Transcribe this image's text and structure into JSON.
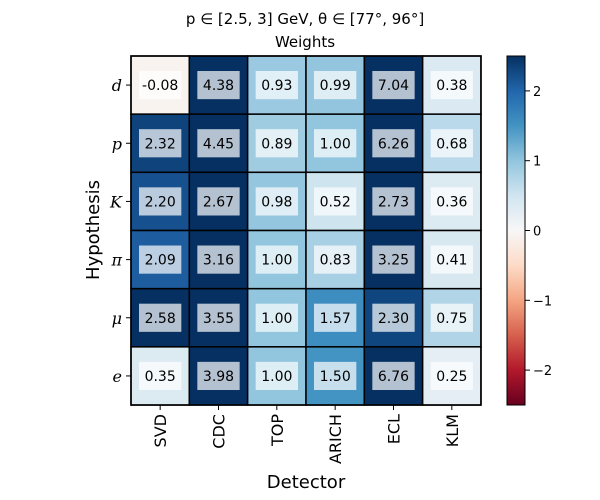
{
  "chart_data": {
    "type": "heatmap",
    "title_line1": "p ∈ [2.5, 3] GeV, θ ∈ [77°, 96°]",
    "title_line2": "Weights",
    "xlabel": "Detector",
    "ylabel": "Hypothesis",
    "x_categories": [
      "SVD",
      "CDC",
      "TOP",
      "ARICH",
      "ECL",
      "KLM"
    ],
    "y_categories": [
      "d",
      "p",
      "K",
      "π",
      "μ",
      "e"
    ],
    "values": [
      [
        -0.08,
        4.38,
        0.93,
        0.99,
        7.04,
        0.38
      ],
      [
        2.32,
        4.45,
        0.89,
        1.0,
        6.26,
        0.68
      ],
      [
        2.2,
        2.67,
        0.98,
        0.52,
        2.73,
        0.36
      ],
      [
        2.09,
        3.16,
        1.0,
        0.83,
        3.25,
        0.41
      ],
      [
        2.58,
        3.55,
        1.0,
        1.57,
        2.3,
        0.75
      ],
      [
        0.35,
        3.98,
        1.0,
        1.5,
        6.76,
        0.25
      ]
    ],
    "value_labels": [
      [
        "-0.08",
        "4.38",
        "0.93",
        "0.99",
        "7.04",
        "0.38"
      ],
      [
        "2.32",
        "4.45",
        "0.89",
        "1.00",
        "6.26",
        "0.68"
      ],
      [
        "2.20",
        "2.67",
        "0.98",
        "0.52",
        "2.73",
        "0.36"
      ],
      [
        "2.09",
        "3.16",
        "1.00",
        "0.83",
        "3.25",
        "0.41"
      ],
      [
        "2.58",
        "3.55",
        "1.00",
        "1.57",
        "2.30",
        "0.75"
      ],
      [
        "0.35",
        "3.98",
        "1.00",
        "1.50",
        "6.76",
        "0.25"
      ]
    ],
    "colorscale": "RdBu",
    "color_range": [
      -2.5,
      2.5
    ],
    "colorbar_ticks": [
      2,
      1,
      0,
      -1,
      -2
    ],
    "colorbar_tick_labels": [
      "2",
      "1",
      "0",
      "−1",
      "−2"
    ],
    "grid": true
  }
}
